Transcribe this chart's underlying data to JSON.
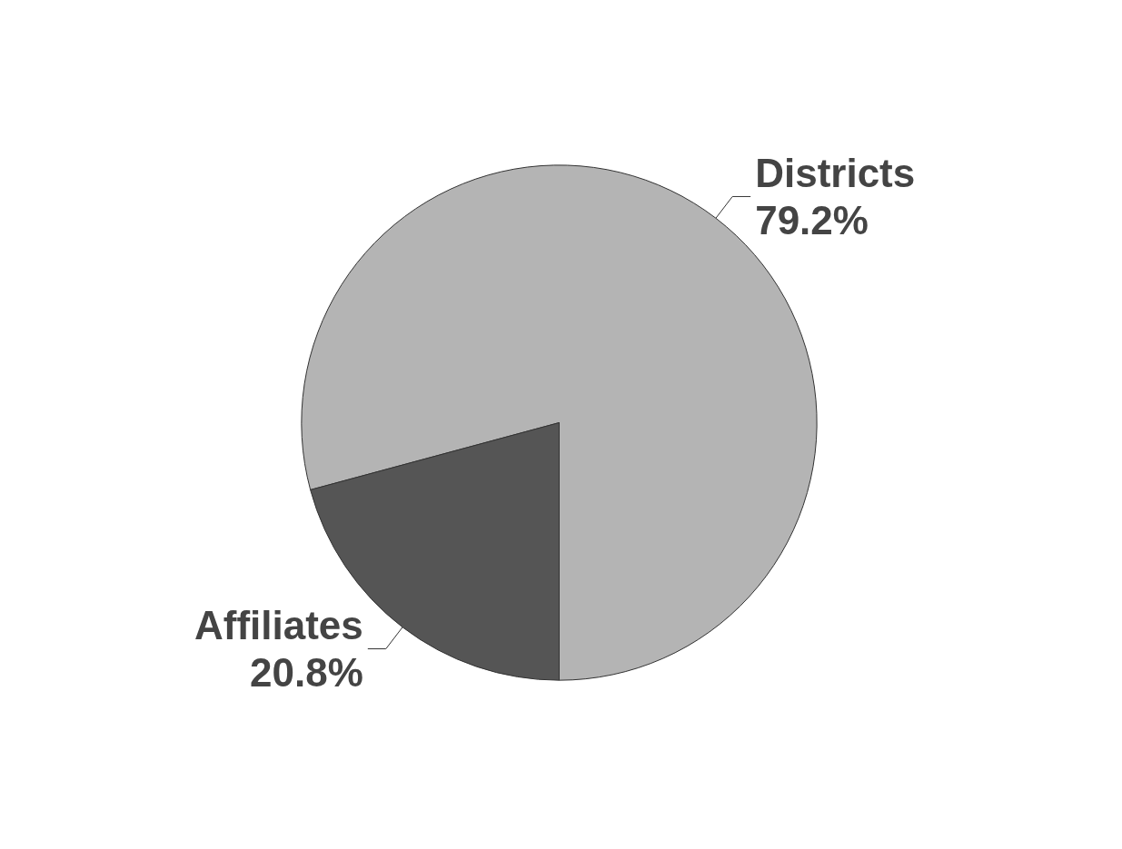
{
  "chart_data": {
    "type": "pie",
    "categories": [
      "Districts",
      "Affiliates"
    ],
    "values": [
      79.2,
      20.8
    ],
    "colors": [
      "#b4b4b4",
      "#555555"
    ],
    "value_labels": [
      "79.2%",
      "20.8%"
    ],
    "legend": false
  }
}
